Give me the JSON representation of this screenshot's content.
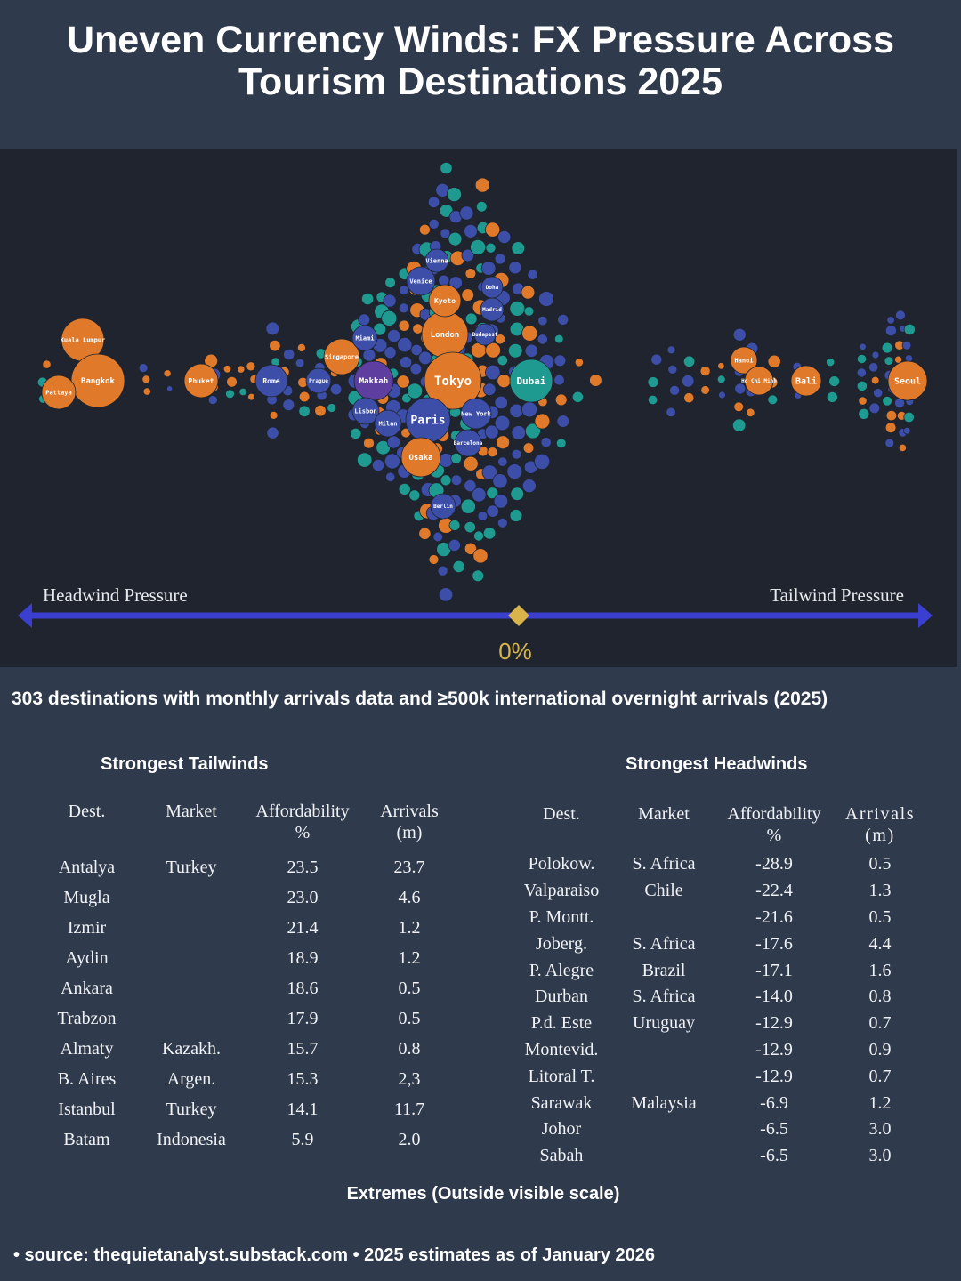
{
  "title": "Uneven Currency Winds: FX Pressure Across Tourism Destinations 2025",
  "colors": {
    "orange": "#e07a2a",
    "blue": "#3d4ea8",
    "teal": "#1f9a90",
    "purple": "#5e3e9e",
    "axis": "#3a3fcf",
    "diamond": "#d8b44a"
  },
  "chart_data": {
    "type": "beeswarm",
    "axis": {
      "left_label": "Headwind Pressure",
      "right_label": "Tailwind Pressure",
      "center_label": "0%"
    },
    "labeled_destinations": [
      "Kuala Lumpur",
      "Bangkok",
      "Pattaya",
      "Phuket",
      "Rome",
      "Singapore",
      "Miami",
      "Makkah",
      "London",
      "Tokyo",
      "Kyoto",
      "Venice",
      "Vienna",
      "Paris",
      "Osaka",
      "New York",
      "Dubai",
      "Lisbon",
      "Milan",
      "Prague",
      "Barcelona",
      "Madrid",
      "Budapest",
      "Berlin",
      "Doha",
      "Hanoi",
      "Bali",
      "Seoul",
      "Ho Chi Minh"
    ]
  },
  "subtitle": "303 destinations with monthly arrivals data and ≥500k international overnight arrivals (2025)",
  "tailwinds": {
    "heading": "Strongest Tailwinds",
    "columns": [
      "Dest.",
      "Market",
      "Affordability %",
      "Arrivals (m)"
    ],
    "rows": [
      [
        "Antalya",
        "Turkey",
        "23.5",
        "23.7"
      ],
      [
        "Mugla",
        "",
        "23.0",
        "4.6"
      ],
      [
        "Izmir",
        "",
        "21.4",
        "1.2"
      ],
      [
        "Aydin",
        "",
        "18.9",
        "1.2"
      ],
      [
        "Ankara",
        "",
        "18.6",
        "0.5"
      ],
      [
        "Trabzon",
        "",
        "17.9",
        "0.5"
      ],
      [
        "Almaty",
        "Kazakh.",
        "15.7",
        "0.8"
      ],
      [
        "B. Aires",
        "Argen.",
        "15.3",
        "2,3"
      ],
      [
        "Istanbul",
        "Turkey",
        "14.1",
        "11.7"
      ],
      [
        "Batam",
        "Indonesia",
        "5.9",
        "2.0"
      ]
    ]
  },
  "headwinds": {
    "heading": "Strongest Headwinds",
    "columns": [
      "Dest.",
      "Market",
      "Affordability %",
      "Arrivals (m)"
    ],
    "rows": [
      [
        "Polokow.",
        "S. Africa",
        "-28.9",
        "0.5"
      ],
      [
        "Valparaiso",
        "Chile",
        "-22.4",
        "1.3"
      ],
      [
        "P. Montt.",
        "",
        "-21.6",
        "0.5"
      ],
      [
        "Joberg.",
        "S. Africa",
        "-17.6",
        "4.4"
      ],
      [
        "P. Alegre",
        "Brazil",
        "-17.1",
        "1.6"
      ],
      [
        "Durban",
        "S. Africa",
        "-14.0",
        "0.8"
      ],
      [
        "P.d. Este",
        "Uruguay",
        "-12.9",
        "0.7"
      ],
      [
        "Montevid.",
        "",
        "-12.9",
        "0.9"
      ],
      [
        "Litoral T.",
        "",
        "-12.9",
        "0.7"
      ],
      [
        "Sarawak",
        "Malaysia",
        "-6.9",
        "1.2"
      ],
      [
        "Johor",
        "",
        "-6.5",
        "3.0"
      ],
      [
        "Sabah",
        "",
        "-6.5",
        "3.0"
      ]
    ]
  },
  "extremes_note": "Extremes (Outside visible scale)",
  "source": "• source: thequietanalyst.substack.com • 2025 estimates as of January 2026"
}
